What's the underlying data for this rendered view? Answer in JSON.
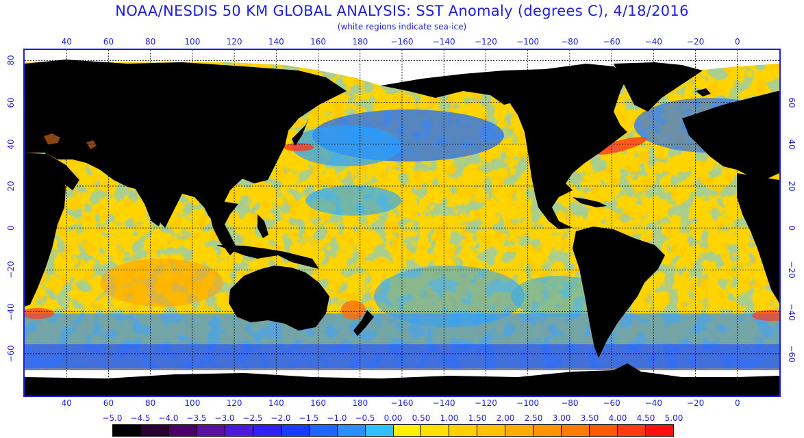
{
  "title": "NOAA/NESDIS 50 KM GLOBAL ANALYSIS: SST Anomaly (degrees C), 4/18/2016",
  "subtitle": "(white regions indicate sea-ice)",
  "map": {
    "lon_min": 20,
    "lon_max": 380,
    "lat_min": -80,
    "lat_max": 85,
    "lon_ticks": [
      "40",
      "60",
      "80",
      "100",
      "120",
      "140",
      "160",
      "180",
      "−160",
      "−140",
      "−120",
      "−100",
      "−80",
      "−60",
      "−40",
      "−20",
      "0"
    ],
    "lon_tick_values": [
      40,
      60,
      80,
      100,
      120,
      140,
      160,
      180,
      200,
      220,
      240,
      260,
      280,
      300,
      320,
      340,
      360
    ],
    "lat_ticks_left": [
      "80",
      "60",
      "40",
      "20",
      "0",
      "−20",
      "−40",
      "−60"
    ],
    "lat_ticks_left_values": [
      80,
      60,
      40,
      20,
      0,
      -20,
      -40,
      -60
    ],
    "lat_ticks_right": [
      "60",
      "40",
      "20",
      "0",
      "−20",
      "−40",
      "−60"
    ],
    "lat_ticks_right_values": [
      60,
      40,
      20,
      0,
      -20,
      -40,
      -60
    ],
    "colors": {
      "land": "#000000",
      "sea_ice": "#ffffff",
      "warm_anomaly": "#ffc600",
      "neutral": "#ffe600",
      "cool_anomaly": "#22a8ff",
      "cold_anomaly": "#1f4cff",
      "hot_anomaly": "#ff4a1e",
      "grid": "#000000",
      "frame": "#1f1fe0"
    }
  },
  "colorbar": {
    "labels": [
      "−5.0",
      "−4.5",
      "−4.0",
      "−3.5",
      "−3.0",
      "−2.5",
      "−2.0",
      "−1.5",
      "−1.0",
      "−0.5",
      "0.00",
      "0.50",
      "1.00",
      "1.50",
      "2.00",
      "2.50",
      "3.00",
      "3.50",
      "4.00",
      "4.50",
      "5.00"
    ],
    "colors": [
      "#000000",
      "#2a0030",
      "#4a0066",
      "#5a10a0",
      "#4a1ad8",
      "#3020f4",
      "#1a3aff",
      "#1e66ff",
      "#2a90ff",
      "#30c0ff",
      "#fff000",
      "#ffe000",
      "#ffd000",
      "#ffc000",
      "#ffac00",
      "#ff9400",
      "#ff7a00",
      "#ff5a00",
      "#ff3a10",
      "#ff1010"
    ]
  }
}
